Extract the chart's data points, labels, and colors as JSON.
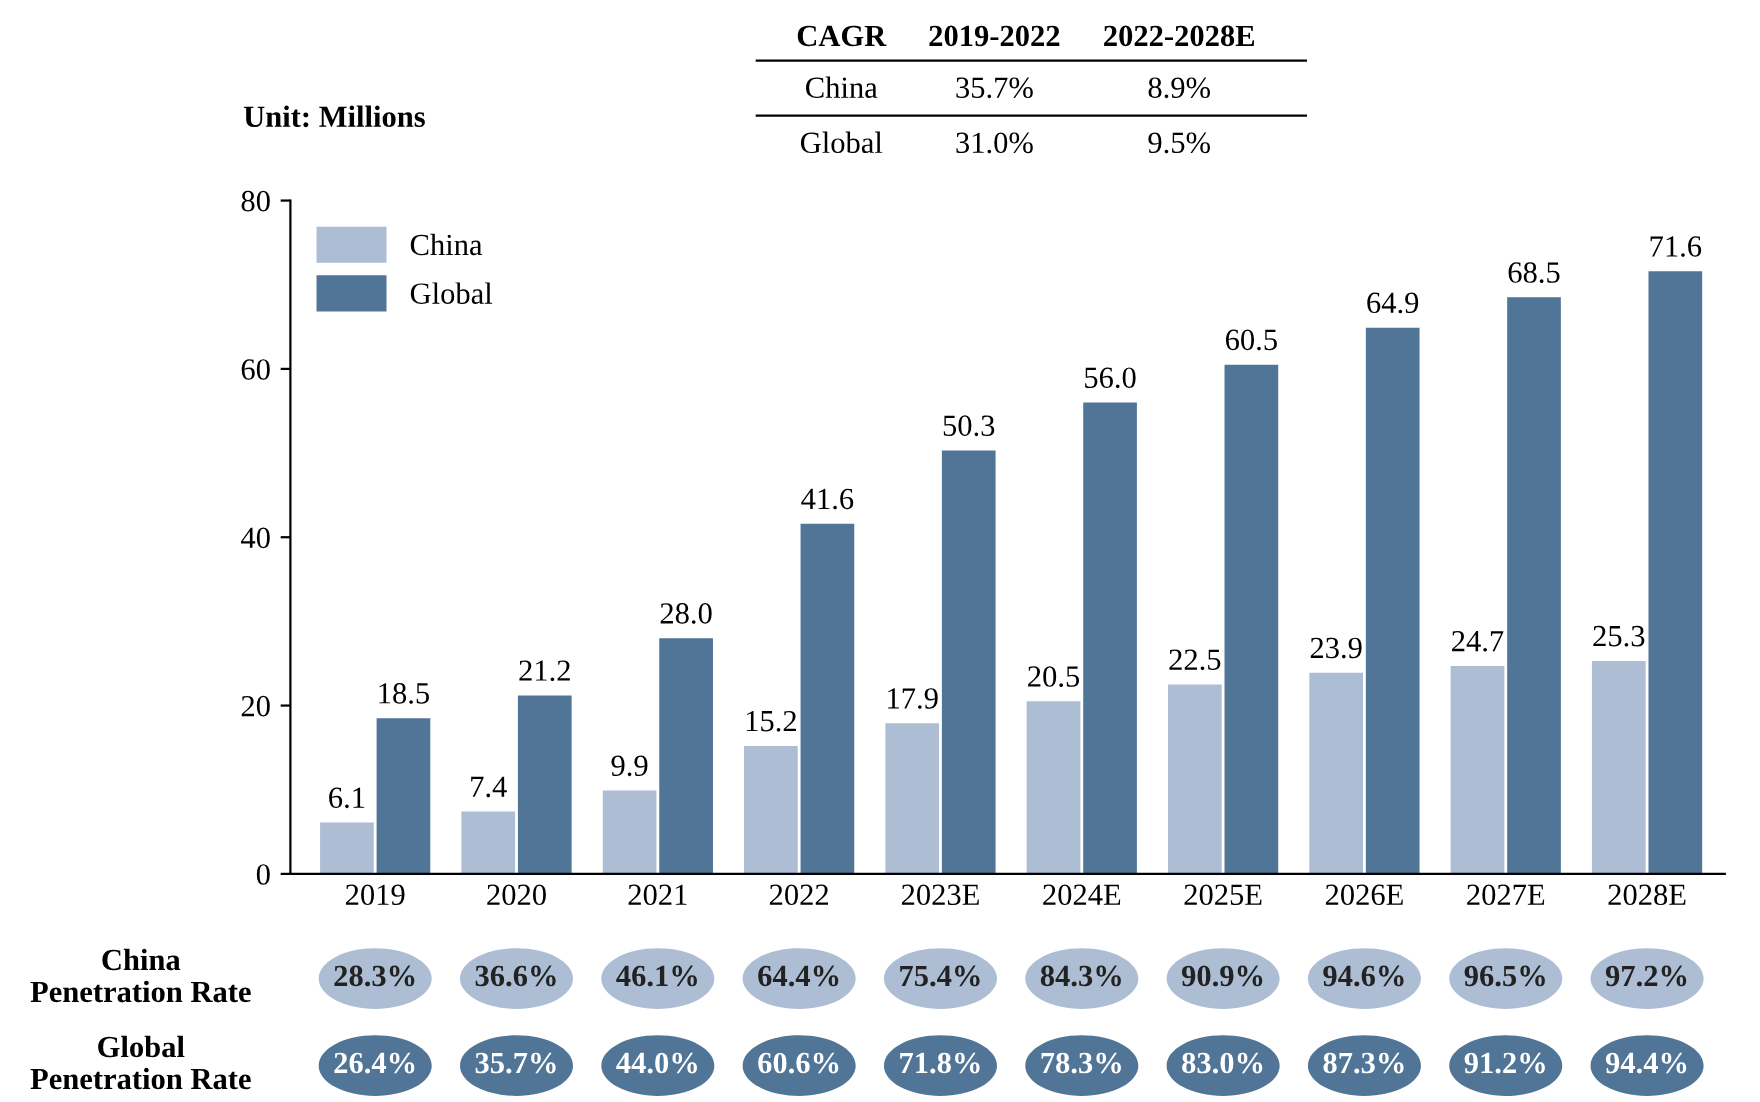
{
  "chart_data": {
    "type": "bar",
    "ylabel": "Unit: Millions",
    "categories": [
      "2019",
      "2020",
      "2021",
      "2022",
      "2023E",
      "2024E",
      "2025E",
      "2026E",
      "2027E",
      "2028E"
    ],
    "series": [
      {
        "name": "China",
        "color": "#adbdd4",
        "values": [
          6.1,
          7.4,
          9.9,
          15.2,
          17.9,
          20.5,
          22.5,
          23.9,
          24.7,
          25.3
        ],
        "value_labels": [
          "6.1",
          "7.4",
          "9.9",
          "15.2",
          "17.9",
          "20.5",
          "22.5",
          "23.9",
          "24.7",
          "25.3"
        ]
      },
      {
        "name": "Global",
        "color": "#517597",
        "values": [
          18.5,
          21.2,
          28.0,
          41.6,
          50.3,
          56.0,
          60.5,
          64.9,
          68.5,
          71.6
        ],
        "value_labels": [
          "18.5",
          "21.2",
          "28.0",
          "41.6",
          "50.3",
          "56.0",
          "60.5",
          "64.9",
          "68.5",
          "71.6"
        ]
      }
    ],
    "ylim": [
      0,
      80
    ],
    "yticks": [
      0,
      20,
      40,
      60,
      80
    ],
    "grid": false,
    "legend": "top left",
    "annotations": [
      "CAGR",
      "2019-2022",
      "2022-2028E",
      "China",
      "35.7%",
      "8.9%",
      "Global",
      "31.0%",
      "9.5%",
      "China\nPenetration Rate",
      "28.3%",
      "36.6%",
      "46.1%",
      "64.4%",
      "75.4%",
      "84.3%",
      "90.9%",
      "94.6%",
      "96.5%",
      "97.2%",
      "Global\nPenetration Rate",
      "26.4%",
      "35.7%",
      "44.0%",
      "60.6%",
      "71.8%",
      "78.3%",
      "83.0%",
      "87.3%",
      "91.2%",
      "94.4%"
    ]
  }
}
